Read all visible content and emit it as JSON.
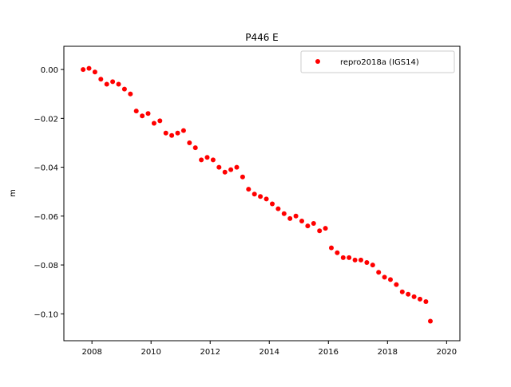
{
  "chart_data": {
    "type": "scatter",
    "title": "P446 E",
    "xlabel": "",
    "ylabel": "m",
    "xlim": [
      2007.05,
      2020.45
    ],
    "ylim": [
      -0.111,
      0.0095
    ],
    "xticks": [
      2008,
      2010,
      2012,
      2014,
      2016,
      2018,
      2020
    ],
    "xtick_labels": [
      "2008",
      "2010",
      "2012",
      "2014",
      "2016",
      "2018",
      "2020"
    ],
    "yticks": [
      0.0,
      -0.02,
      -0.04,
      -0.06,
      -0.08,
      -0.1
    ],
    "ytick_labels": [
      "0.00",
      "−0.02",
      "−0.04",
      "−0.06",
      "−0.08",
      "−0.10"
    ],
    "grid": false,
    "legend_position": "top-right",
    "series": [
      {
        "name": "repro2018a (IGS14)",
        "color": "#ff0000",
        "marker": "circle",
        "x": [
          2007.7,
          2007.9,
          2008.1,
          2008.3,
          2008.5,
          2008.7,
          2008.9,
          2009.1,
          2009.3,
          2009.5,
          2009.7,
          2009.9,
          2010.1,
          2010.3,
          2010.5,
          2010.7,
          2010.9,
          2011.1,
          2011.3,
          2011.5,
          2011.7,
          2011.9,
          2012.1,
          2012.3,
          2012.5,
          2012.7,
          2012.9,
          2013.1,
          2013.3,
          2013.5,
          2013.7,
          2013.9,
          2014.1,
          2014.3,
          2014.5,
          2014.7,
          2014.9,
          2015.1,
          2015.3,
          2015.5,
          2015.7,
          2015.9,
          2016.1,
          2016.3,
          2016.5,
          2016.7,
          2016.9,
          2017.1,
          2017.3,
          2017.5,
          2017.7,
          2017.9,
          2018.1,
          2018.3,
          2018.5,
          2018.7,
          2018.9,
          2019.1,
          2019.3,
          2019.45
        ],
        "y": [
          0.0,
          0.0005,
          -0.001,
          -0.004,
          -0.006,
          -0.005,
          -0.006,
          -0.008,
          -0.01,
          -0.017,
          -0.019,
          -0.018,
          -0.022,
          -0.021,
          -0.026,
          -0.027,
          -0.026,
          -0.025,
          -0.03,
          -0.032,
          -0.037,
          -0.036,
          -0.037,
          -0.04,
          -0.042,
          -0.041,
          -0.04,
          -0.044,
          -0.049,
          -0.051,
          -0.052,
          -0.053,
          -0.055,
          -0.057,
          -0.059,
          -0.061,
          -0.06,
          -0.062,
          -0.064,
          -0.063,
          -0.066,
          -0.065,
          -0.073,
          -0.075,
          -0.077,
          -0.077,
          -0.078,
          -0.078,
          -0.079,
          -0.08,
          -0.083,
          -0.085,
          -0.086,
          -0.088,
          -0.091,
          -0.092,
          -0.093,
          -0.094,
          -0.095,
          -0.103
        ]
      }
    ]
  }
}
